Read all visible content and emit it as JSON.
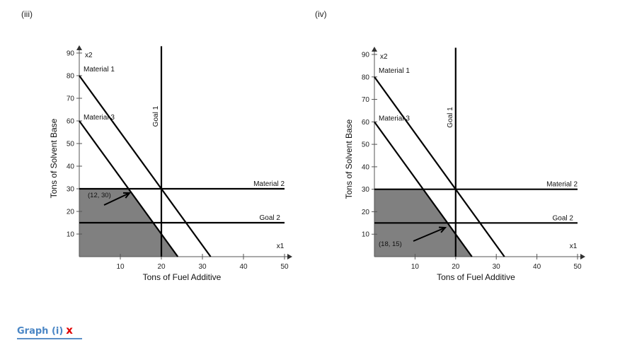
{
  "panels": [
    {
      "id": "iii",
      "label": "(iii)"
    },
    {
      "id": "iv",
      "label": "(iv)"
    }
  ],
  "footer": {
    "link_text": "Graph (i)",
    "mark": "x",
    "link_color": "#4a86c5",
    "mark_color": "#e00000"
  },
  "chart_data": [
    {
      "panel": "(iii)",
      "type": "line",
      "xlabel": "Tons of Fuel Additive",
      "ylabel": "Tons of Solvent Base",
      "x_axis_name": "x1",
      "y_axis_name": "x2",
      "xlim": [
        0,
        50
      ],
      "ylim": [
        0,
        90
      ],
      "xticks": [
        10,
        20,
        30,
        40,
        50
      ],
      "yticks": [
        10,
        20,
        30,
        40,
        50,
        60,
        70,
        80,
        90
      ],
      "grid": false,
      "shaded_region_color": "#808080",
      "shaded_region": [
        [
          0,
          0
        ],
        [
          24,
          0
        ],
        [
          12,
          30
        ],
        [
          0,
          30
        ]
      ],
      "lines": [
        {
          "name": "Material 1",
          "points": [
            [
              0,
              80
            ],
            [
              32,
              0
            ]
          ]
        },
        {
          "name": "Material 3",
          "points": [
            [
              0,
              60
            ],
            [
              24,
              0
            ]
          ]
        },
        {
          "name": "Material 2",
          "points": [
            [
              0,
              30
            ],
            [
              50,
              30
            ]
          ]
        },
        {
          "name": "Goal 2",
          "points": [
            [
              0,
              15
            ],
            [
              50,
              15
            ]
          ]
        },
        {
          "name": "Goal 1",
          "points": [
            [
              20,
              0
            ],
            [
              20,
              93
            ]
          ]
        }
      ],
      "annotation": {
        "text": "(12, 30)",
        "point": [
          12,
          30
        ]
      }
    },
    {
      "panel": "(iv)",
      "type": "line",
      "xlabel": "Tons of Fuel Additive",
      "ylabel": "Tons of Solvent Base",
      "x_axis_name": "x1",
      "y_axis_name": "x2",
      "xlim": [
        0,
        50
      ],
      "ylim": [
        0,
        90
      ],
      "xticks": [
        10,
        20,
        30,
        40,
        50
      ],
      "yticks": [
        10,
        20,
        30,
        40,
        50,
        60,
        70,
        80,
        90
      ],
      "grid": false,
      "shaded_region_color": "#808080",
      "shaded_region": [
        [
          0,
          0
        ],
        [
          24,
          0
        ],
        [
          12,
          30
        ],
        [
          0,
          30
        ]
      ],
      "lines": [
        {
          "name": "Material 1",
          "points": [
            [
              0,
              80
            ],
            [
              32,
              0
            ]
          ]
        },
        {
          "name": "Material 3",
          "points": [
            [
              0,
              60
            ],
            [
              24,
              0
            ]
          ]
        },
        {
          "name": "Material 2",
          "points": [
            [
              0,
              30
            ],
            [
              50,
              30
            ]
          ]
        },
        {
          "name": "Goal 2",
          "points": [
            [
              0,
              15
            ],
            [
              50,
              15
            ]
          ]
        },
        {
          "name": "Goal 1",
          "points": [
            [
              20,
              0
            ],
            [
              20,
              93
            ]
          ]
        }
      ],
      "annotation": {
        "text": "(18, 15)",
        "point": [
          18,
          15
        ]
      }
    }
  ]
}
